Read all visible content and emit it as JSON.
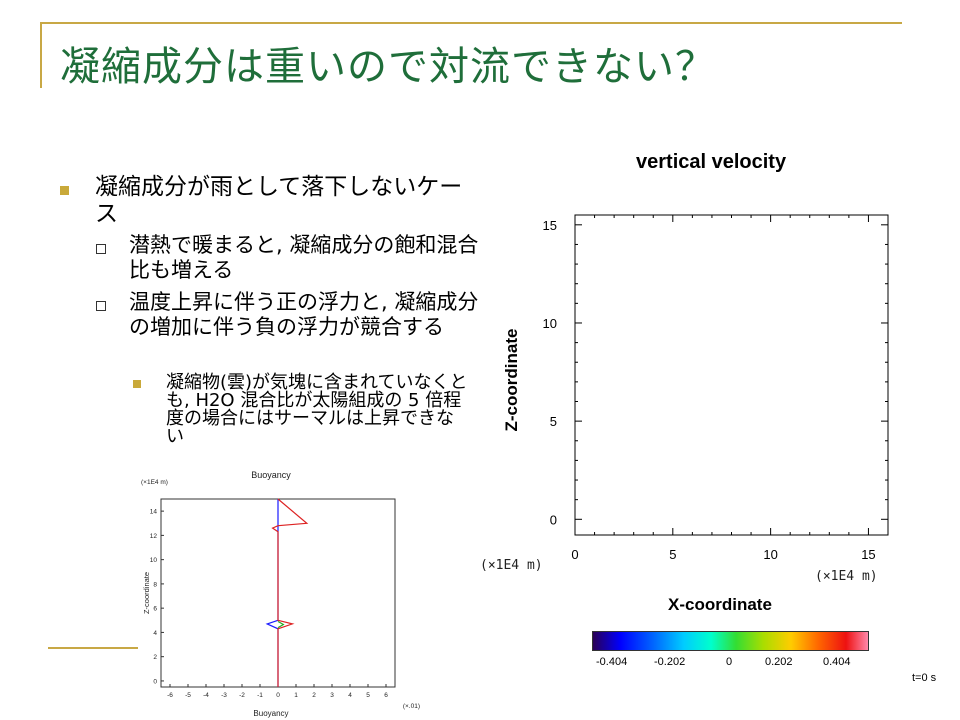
{
  "slide": {
    "title": "凝縮成分は重いので対流できない？",
    "bullets": [
      {
        "text": "凝縮成分が雨として落下しないケース"
      },
      {
        "text": "潜熱で暖まると, 凝縮成分の飽和混合比も増える"
      },
      {
        "text": "温度上昇に伴う正の浮力と, 凝縮成分の増加に伴う負の浮力が競合する"
      },
      {
        "text": "凝縮物(雲)が気塊に含まれていなくとも, H2O 混合比が太陽組成の 5 倍程度の場合にはサーマルは上昇できない"
      }
    ]
  },
  "velocity_plot": {
    "title": "vertical velocity",
    "xlabel": "X-coordinate",
    "ylabel": "Z-coordinate",
    "x_unit": "(×1E4 m)",
    "z_unit": "(×1E4 m)",
    "x_ticks": [
      "0",
      "5",
      "10",
      "15"
    ],
    "z_ticks": [
      "15",
      "10",
      "5",
      "0"
    ],
    "colorbar_ticks": [
      "-0.404",
      "-0.202",
      "0",
      "0.202",
      "0.404"
    ],
    "time": "t=0 s"
  },
  "buoyancy_plot": {
    "title": "Buoyancy",
    "xlabel": "Buoyancy",
    "ylabel": "Z-coordinate",
    "y_unit": "(×1E4 m)",
    "x_unit": "(×.01)",
    "x_ticks": [
      "-6",
      "-5",
      "-4",
      "-3",
      "-2",
      "-1",
      "0",
      "1",
      "2",
      "3",
      "4",
      "5",
      "6"
    ],
    "y_ticks": [
      "14",
      "12",
      "10",
      "8",
      "6",
      "4",
      "2",
      "0"
    ]
  },
  "chart_data": [
    {
      "type": "heatmap",
      "title": "vertical velocity",
      "xlabel": "X-coordinate",
      "ylabel": "Z-coordinate",
      "xlim": [
        0,
        16
      ],
      "ylim": [
        -0.8,
        15.5
      ],
      "colorbar": {
        "ticks": [
          -0.404,
          -0.202,
          0,
          0.202,
          0.404
        ]
      },
      "values": "all zero (blank field)"
    },
    {
      "type": "line",
      "title": "Buoyancy",
      "xlabel": "Buoyancy",
      "ylabel": "Z-coordinate",
      "xlim": [
        -6.5,
        6.5
      ],
      "ylim": [
        -0.5,
        15
      ],
      "series": [
        {
          "color": "#1a1aff",
          "x": [
            0,
            0,
            -0.6,
            0,
            0
          ],
          "y": [
            15,
            5,
            4.7,
            4.3,
            -0.5
          ]
        },
        {
          "color": "#dd2222",
          "x": [
            0,
            1.6,
            0,
            -0.3,
            0,
            0,
            0.8,
            0,
            0
          ],
          "y": [
            15,
            13,
            12.8,
            12.6,
            12.3,
            5,
            4.7,
            4.3,
            -0.5
          ]
        },
        {
          "color": "#22aa22",
          "x": [
            0,
            0.3,
            0
          ],
          "y": [
            4.9,
            4.65,
            4.4
          ]
        }
      ]
    }
  ]
}
